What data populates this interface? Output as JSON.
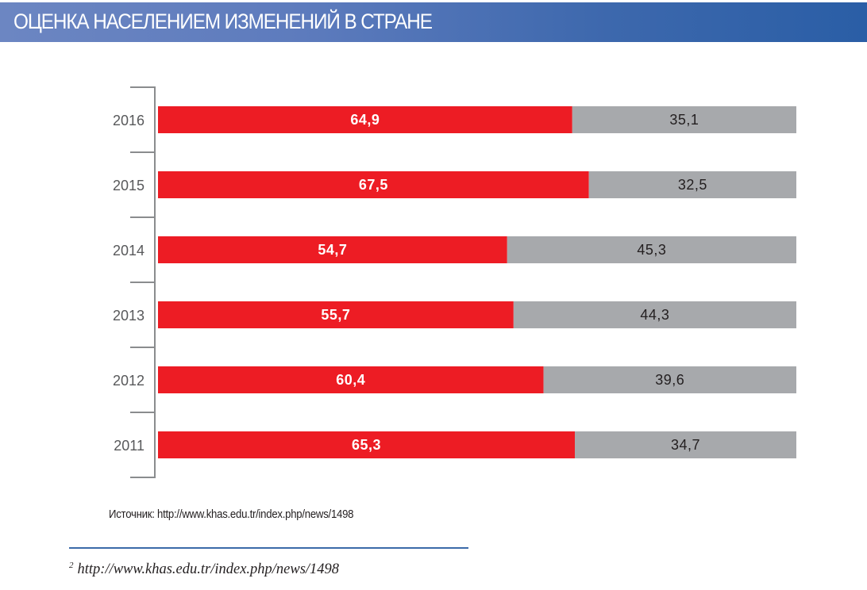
{
  "header": {
    "title": "ОЦЕНКА НАСЕЛЕНИЕМ ИЗМЕНЕНИЙ В СТРАНЕ"
  },
  "chart_data": {
    "type": "bar",
    "orientation": "horizontal",
    "stacked": true,
    "categories": [
      "2016",
      "2015",
      "2014",
      "2013",
      "2012",
      "2011"
    ],
    "series": [
      {
        "values": [
          64.9,
          67.5,
          54.7,
          55.7,
          60.4,
          65.3
        ],
        "labels": [
          "64,9",
          "67,5",
          "54,7",
          "55,7",
          "60,4",
          "65,3"
        ],
        "color": "#ed1c24"
      },
      {
        "values": [
          35.1,
          32.5,
          45.3,
          44.3,
          39.6,
          34.7
        ],
        "labels": [
          "35,1",
          "32,5",
          "45,3",
          "44,3",
          "39,6",
          "34,7"
        ],
        "color": "#a7a9ac"
      }
    ],
    "xlim": [
      0,
      100
    ],
    "title": "",
    "xlabel": "",
    "ylabel": "",
    "grid": false,
    "legend": "none"
  },
  "source": {
    "text": "Источник: http://www.khas.edu.tr/index.php/news/1498"
  },
  "footnote": {
    "number": "2",
    "text": "http://www.khas.edu.tr/index.php/news/1498"
  }
}
